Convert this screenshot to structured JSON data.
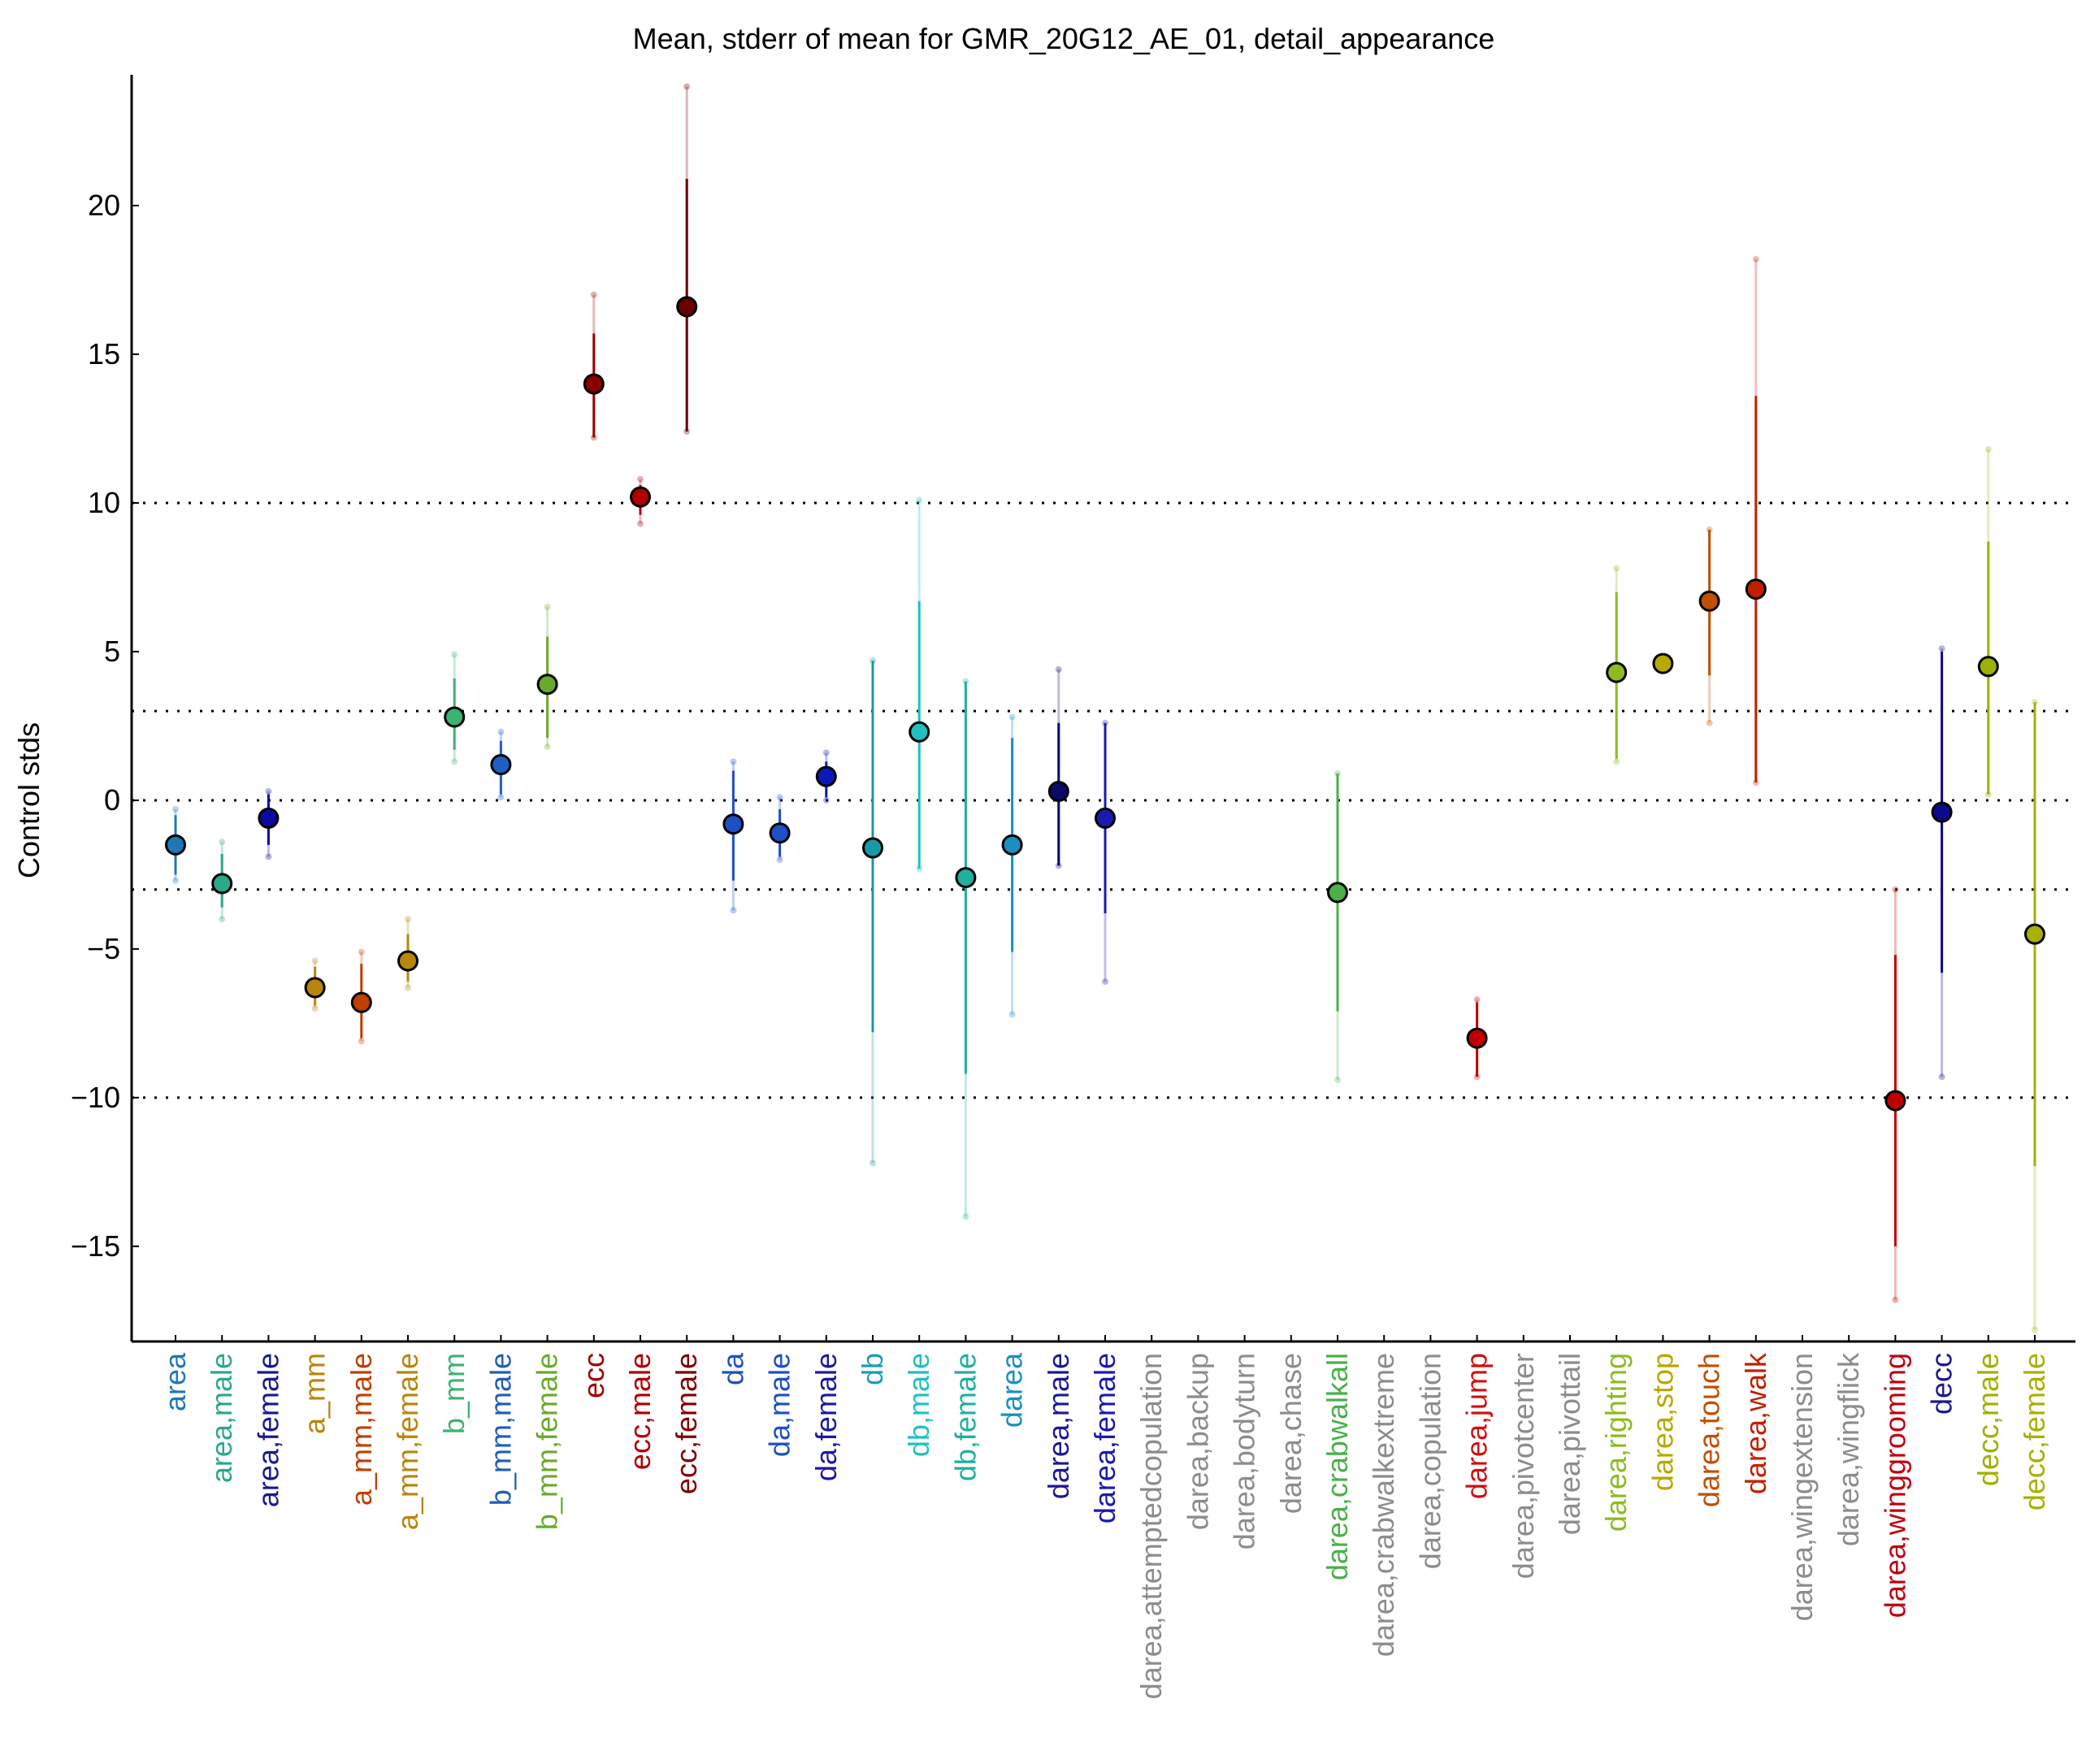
{
  "chart_data": {
    "type": "scatter",
    "title": "Mean, stderr of mean for GMR_20G12_AE_01, detail_appearance",
    "xlabel": "",
    "ylabel": "Control stds",
    "ylim": [
      -18.2,
      24.4
    ],
    "yticks": [
      20,
      15,
      10,
      5,
      0,
      -5,
      -10,
      -15
    ],
    "ytick_labels": [
      "20",
      "15",
      "10",
      "5",
      "0",
      "−5",
      "−10",
      "−15"
    ],
    "reference_lines": [
      10,
      3,
      0,
      -3,
      -10
    ],
    "grid": false,
    "legend": "none",
    "categories": [
      "area",
      "area,male",
      "area,female",
      "a_mm",
      "a_mm,male",
      "a_mm,female",
      "b_mm",
      "b_mm,male",
      "b_mm,female",
      "ecc",
      "ecc,male",
      "ecc,female",
      "da",
      "da,male",
      "da,female",
      "db",
      "db,male",
      "db,female",
      "darea",
      "darea,male",
      "darea,female",
      "darea,attemptedcopulation",
      "darea,backup",
      "darea,bodyturn",
      "darea,chase",
      "darea,crabwalkall",
      "darea,crabwalkextreme",
      "darea,copulation",
      "darea,jump",
      "darea,pivotcenter",
      "darea,pivottail",
      "darea,righting",
      "darea,stop",
      "darea,touch",
      "darea,walk",
      "darea,wingextension",
      "darea,wingflick",
      "darea,winggrooming",
      "decc",
      "decc,male",
      "decc,female"
    ],
    "label_colors": [
      "#1f77b4",
      "#2ca88a",
      "#1a1a8c",
      "#b8860b",
      "#c04000",
      "#b8860b",
      "#3cb371",
      "#1f5fb4",
      "#6aaa2a",
      "#a00000",
      "#b00000",
      "#800000",
      "#1f4fc4",
      "#1f4fc4",
      "#1a1aa0",
      "#17a0b0",
      "#20c0c0",
      "#20b0a0",
      "#1a8fc0",
      "#1a1a8c",
      "#1a1ab0",
      "#8c8c8c",
      "#8c8c8c",
      "#8c8c8c",
      "#8c8c8c",
      "#4ab04a",
      "#8c8c8c",
      "#8c8c8c",
      "#d01010",
      "#8c8c8c",
      "#8c8c8c",
      "#8cbc20",
      "#b8a800",
      "#c05000",
      "#c02000",
      "#8c8c8c",
      "#8c8c8c",
      "#c00010",
      "#1a1a8c",
      "#a0b000",
      "#a8b000"
    ],
    "points": [
      {
        "i": 0,
        "mean": -1.5,
        "se_lo": -2.5,
        "se_hi": -0.5,
        "lo": -2.7,
        "hi": -0.3,
        "fill": "#1f77b4",
        "line": "#1f77b4"
      },
      {
        "i": 1,
        "mean": -2.8,
        "se_lo": -3.6,
        "se_hi": -1.8,
        "lo": -4.0,
        "hi": -1.4,
        "fill": "#2ca88a",
        "line": "#2ca88a"
      },
      {
        "i": 2,
        "mean": -0.6,
        "se_lo": -1.5,
        "se_hi": 0.2,
        "lo": -1.9,
        "hi": 0.3,
        "fill": "#0a0aa0",
        "line": "#0a0aa0"
      },
      {
        "i": 3,
        "mean": -6.3,
        "se_lo": -6.9,
        "se_hi": -5.6,
        "lo": -7.0,
        "hi": -5.4,
        "fill": "#b8860b",
        "line": "#b8860b"
      },
      {
        "i": 4,
        "mean": -6.8,
        "se_lo": -8.0,
        "se_hi": -5.5,
        "lo": -8.1,
        "hi": -5.1,
        "fill": "#c04000",
        "line": "#c04000"
      },
      {
        "i": 5,
        "mean": -5.4,
        "se_lo": -6.1,
        "se_hi": -4.5,
        "lo": -6.3,
        "hi": -4.0,
        "fill": "#b8860b",
        "line": "#b8860b"
      },
      {
        "i": 6,
        "mean": 2.8,
        "se_lo": 1.7,
        "se_hi": 4.1,
        "lo": 1.3,
        "hi": 4.9,
        "fill": "#3cb371",
        "line": "#3cb371"
      },
      {
        "i": 7,
        "mean": 1.2,
        "se_lo": 0.2,
        "se_hi": 2.0,
        "lo": 0.1,
        "hi": 2.3,
        "fill": "#1f5fc4",
        "line": "#1f5fc4"
      },
      {
        "i": 8,
        "mean": 3.9,
        "se_lo": 2.1,
        "se_hi": 5.5,
        "lo": 1.8,
        "hi": 6.5,
        "fill": "#6aaa2a",
        "line": "#6aaa2a"
      },
      {
        "i": 9,
        "mean": 14.0,
        "se_lo": 12.2,
        "se_hi": 15.7,
        "lo": 12.2,
        "hi": 17.0,
        "fill": "#8a0000",
        "line": "#a00000"
      },
      {
        "i": 10,
        "mean": 10.2,
        "se_lo": 9.6,
        "se_hi": 10.6,
        "lo": 9.3,
        "hi": 10.8,
        "fill": "#b00000",
        "line": "#b00000"
      },
      {
        "i": 11,
        "mean": 16.6,
        "se_lo": 12.4,
        "se_hi": 20.9,
        "lo": 12.4,
        "hi": 24.0,
        "fill": "#6a0000",
        "line": "#6a0000"
      },
      {
        "i": 12,
        "mean": -0.8,
        "se_lo": -2.7,
        "se_hi": 1.0,
        "lo": -3.7,
        "hi": 1.3,
        "fill": "#1f4fc4",
        "line": "#1f4fc4"
      },
      {
        "i": 13,
        "mean": -1.1,
        "se_lo": -1.9,
        "se_hi": -0.3,
        "lo": -2.0,
        "hi": 0.1,
        "fill": "#1f4fc4",
        "line": "#1f4fc4"
      },
      {
        "i": 14,
        "mean": 0.8,
        "se_lo": 0.1,
        "se_hi": 1.3,
        "lo": 0.0,
        "hi": 1.6,
        "fill": "#0a1ab8",
        "line": "#0a1ab8"
      },
      {
        "i": 15,
        "mean": -1.6,
        "se_lo": -7.8,
        "se_hi": 4.7,
        "lo": -12.2,
        "hi": 4.7,
        "fill": "#1898a8",
        "line": "#1898a8"
      },
      {
        "i": 16,
        "mean": 2.3,
        "se_lo": -2.3,
        "se_hi": 6.7,
        "lo": -2.3,
        "hi": 10.1,
        "fill": "#20c0c0",
        "line": "#20c0c0"
      },
      {
        "i": 17,
        "mean": -2.6,
        "se_lo": -9.2,
        "se_hi": 4.0,
        "lo": -14.0,
        "hi": 4.0,
        "fill": "#20b0a0",
        "line": "#20b0a0"
      },
      {
        "i": 18,
        "mean": -1.5,
        "se_lo": -5.1,
        "se_hi": 2.1,
        "lo": -7.2,
        "hi": 2.8,
        "fill": "#1a8fc0",
        "line": "#1a8fc0"
      },
      {
        "i": 19,
        "mean": 0.3,
        "se_lo": -2.2,
        "se_hi": 2.6,
        "lo": -2.2,
        "hi": 4.4,
        "fill": "#0a0a6a",
        "line": "#0a0a6a"
      },
      {
        "i": 20,
        "mean": -0.6,
        "se_lo": -3.8,
        "se_hi": 2.6,
        "lo": -6.1,
        "hi": 2.6,
        "fill": "#1a1ab0",
        "line": "#1a1ab0"
      },
      {
        "i": 25,
        "mean": -3.1,
        "se_lo": -7.1,
        "se_hi": 0.9,
        "lo": -9.4,
        "hi": 0.9,
        "fill": "#4ab04a",
        "line": "#4ab04a"
      },
      {
        "i": 28,
        "mean": -8.0,
        "se_lo": -9.3,
        "se_hi": -6.8,
        "lo": -9.3,
        "hi": -6.7,
        "fill": "#c00000",
        "line": "#c00000"
      },
      {
        "i": 31,
        "mean": 4.3,
        "se_lo": 1.4,
        "se_hi": 7.0,
        "lo": 1.3,
        "hi": 7.8,
        "fill": "#8cbc20",
        "line": "#8cbc20"
      },
      {
        "i": 32,
        "mean": 4.6,
        "se_lo": 4.6,
        "se_hi": 4.6,
        "lo": 4.6,
        "hi": 4.6,
        "fill": "#b8a800",
        "line": "#b8a800"
      },
      {
        "i": 33,
        "mean": 6.7,
        "se_lo": 4.2,
        "se_hi": 9.1,
        "lo": 2.6,
        "hi": 9.1,
        "fill": "#c05000",
        "line": "#c05000"
      },
      {
        "i": 34,
        "mean": 7.1,
        "se_lo": 0.6,
        "se_hi": 13.6,
        "lo": 0.6,
        "hi": 18.2,
        "fill": "#c02000",
        "line": "#c02000"
      },
      {
        "i": 37,
        "mean": -10.1,
        "se_lo": -15.0,
        "se_hi": -5.2,
        "lo": -16.8,
        "hi": -3.0,
        "fill": "#c00000",
        "line": "#c00000"
      },
      {
        "i": 38,
        "mean": -0.4,
        "se_lo": -5.8,
        "se_hi": 5.0,
        "lo": -9.3,
        "hi": 5.1,
        "fill": "#0a0a8a",
        "line": "#0a0a8a"
      },
      {
        "i": 39,
        "mean": 4.5,
        "se_lo": 0.2,
        "se_hi": 8.7,
        "lo": 0.2,
        "hi": 11.8,
        "fill": "#a0b000",
        "line": "#a0b000"
      },
      {
        "i": 40,
        "mean": -4.5,
        "se_lo": -12.3,
        "se_hi": 3.3,
        "lo": -17.8,
        "hi": 3.3,
        "fill": "#a8b000",
        "line": "#a8b000"
      }
    ]
  }
}
